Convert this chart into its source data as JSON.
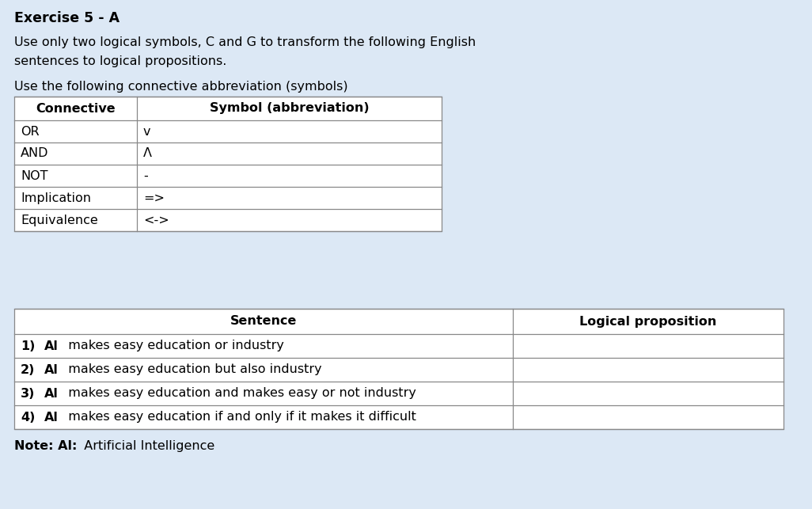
{
  "title": "Exercise 5 - A",
  "subtitle1": "Use only two logical symbols, C and G to transform the following English",
  "subtitle2": "sentences to logical propositions.",
  "subtitle3": "Use the following connective abbreviation (symbols)",
  "bg_color": "#dce8f5",
  "table_bg": "#ffffff",
  "line_color": "#888888",
  "table1_headers": [
    "Connective",
    "Symbol (abbreviation)"
  ],
  "table1_rows": [
    [
      "OR",
      "v"
    ],
    [
      "AND",
      "Λ"
    ],
    [
      "NOT",
      "-"
    ],
    [
      "Implication",
      "=>"
    ],
    [
      "Equivalence",
      "<->"
    ]
  ],
  "table2_headers": [
    "Sentence",
    "Logical proposition"
  ],
  "table2_rows": [
    [
      "1)",
      "Al makes easy education or industry"
    ],
    [
      "2)",
      "Al makes easy education but also industry"
    ],
    [
      "3)",
      "Al makes easy education and makes easy or not industry"
    ],
    [
      "4)",
      "Al makes easy education if and only if it makes it difficult"
    ]
  ],
  "note_bold": "Note: Al:",
  "note_normal": "  Artificial Intelligence",
  "font_family": "DejaVu Sans",
  "title_fontsize": 12.5,
  "body_fontsize": 11.5,
  "table_fontsize": 11.5
}
